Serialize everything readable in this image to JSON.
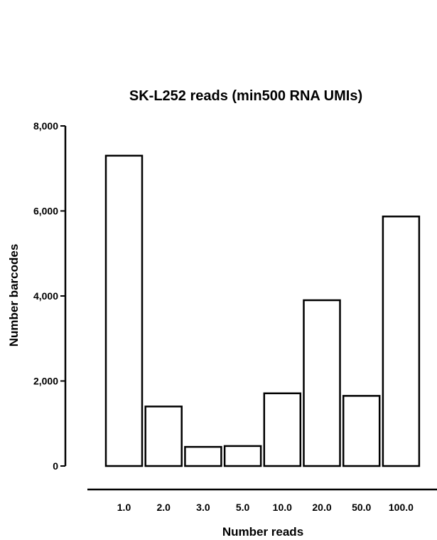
{
  "chart_data": {
    "type": "bar",
    "title": "SK-L252 reads (min500 RNA UMIs)",
    "xlabel": "Number reads",
    "ylabel": "Number barcodes",
    "categories": [
      "1.0",
      "2.0",
      "3.0",
      "5.0",
      "10.0",
      "20.0",
      "50.0",
      "100.0"
    ],
    "values": [
      7300,
      1400,
      450,
      470,
      1710,
      3900,
      1650,
      5870
    ],
    "ylim": [
      0,
      8000
    ],
    "yticks": [
      0,
      2000,
      4000,
      6000,
      8000
    ],
    "ytick_labels": [
      "0",
      "2,000",
      "4,000",
      "6,000",
      "8,000"
    ],
    "grid": false,
    "bar_fill": "#ffffff",
    "bar_stroke": "#000000"
  }
}
